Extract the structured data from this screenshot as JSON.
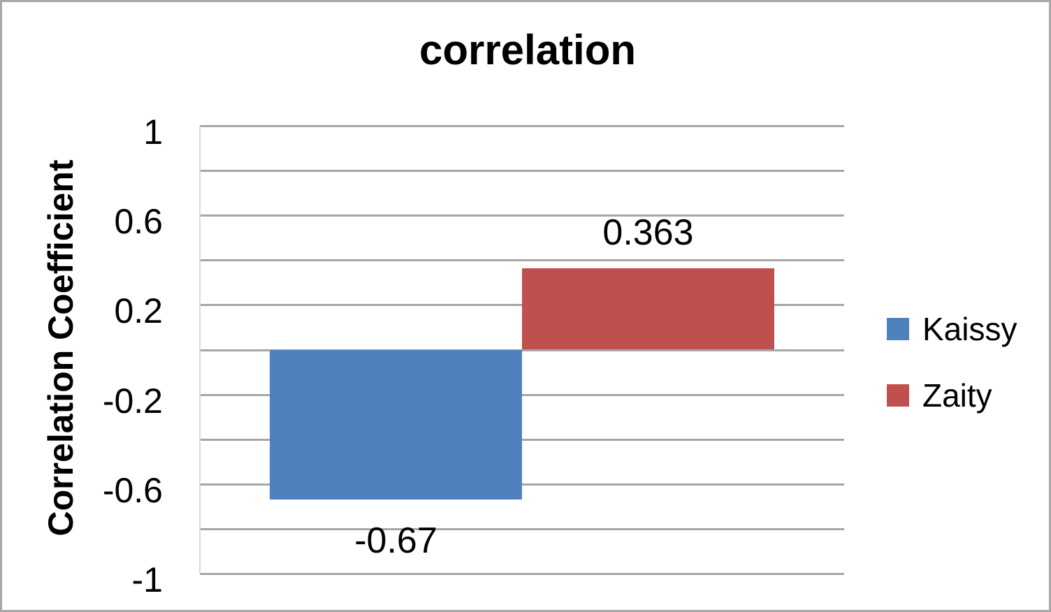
{
  "chart_data": {
    "type": "bar",
    "title": "correlation",
    "ylabel": "Correlation Coefficient",
    "xlabel": "",
    "categories": [
      ""
    ],
    "series": [
      {
        "name": "Kaissy",
        "value": -0.67,
        "data_label": "-0.67",
        "color": "#4f81bd"
      },
      {
        "name": "Zaity",
        "value": 0.363,
        "data_label": "0.363",
        "color": "#c0504d"
      }
    ],
    "ylim": [
      -1,
      1
    ],
    "gridline_step": 0.2,
    "grid": true,
    "gridline_color": "#a6a6a6",
    "axis_line_color": "#d9d9d9",
    "yticks": [
      {
        "value": 1,
        "label": "1"
      },
      {
        "value": 0.6,
        "label": "0.6"
      },
      {
        "value": 0.2,
        "label": "0.2"
      },
      {
        "value": -0.2,
        "label": "-0.2"
      },
      {
        "value": -0.6,
        "label": "-0.6"
      },
      {
        "value": -1,
        "label": "-1"
      }
    ],
    "legend_position": "right",
    "legend": [
      {
        "label": "Kaissy",
        "color": "#4f81bd"
      },
      {
        "label": "Zaity",
        "color": "#c0504d"
      }
    ]
  }
}
